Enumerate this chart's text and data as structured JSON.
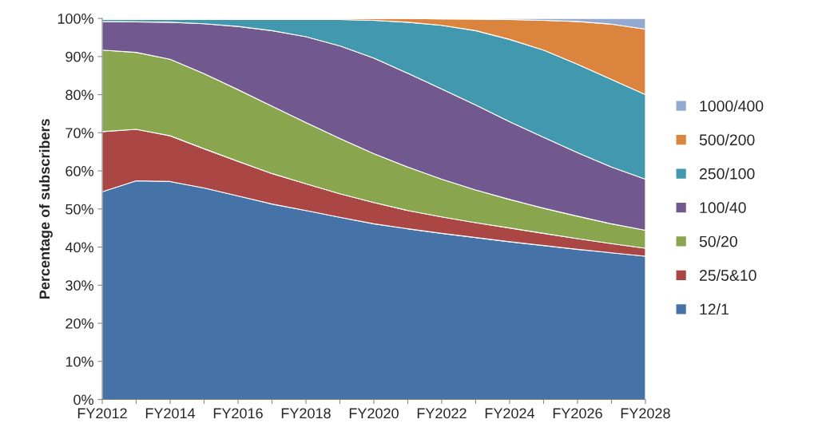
{
  "chart_data": {
    "type": "area",
    "stacked": true,
    "ylabel": "Percentage of subscribers",
    "categories": [
      "FY2012",
      null,
      "FY2014",
      null,
      "FY2016",
      null,
      "FY2018",
      null,
      "FY2020",
      null,
      "FY2022",
      null,
      "FY2024",
      null,
      "FY2026",
      null,
      "FY2028"
    ],
    "series": [
      {
        "name": "12/1",
        "color": "#4573a7",
        "values": [
          54.5,
          57.4,
          57.2,
          55.5,
          53.4,
          51.3,
          49.6,
          47.8,
          46.1,
          44.8,
          43.6,
          42.5,
          41.4,
          40.4,
          39.4,
          38.5,
          37.6
        ]
      },
      {
        "name": "25/5&10",
        "color": "#aa4644",
        "values": [
          15.8,
          13.5,
          12.0,
          10.3,
          9.1,
          8.0,
          7.0,
          6.2,
          5.6,
          4.8,
          4.3,
          3.9,
          3.6,
          3.2,
          2.8,
          2.4,
          2.1
        ]
      },
      {
        "name": "50/20",
        "color": "#89a54e",
        "values": [
          21.4,
          20.2,
          20.1,
          19.7,
          18.8,
          17.7,
          16.1,
          14.5,
          12.8,
          11.4,
          9.9,
          8.6,
          7.5,
          6.6,
          5.9,
          5.2,
          4.7
        ]
      },
      {
        "name": "100/40",
        "color": "#71588f",
        "values": [
          7.5,
          8.0,
          9.7,
          13.1,
          16.6,
          19.8,
          22.5,
          24.3,
          25.1,
          24.6,
          23.7,
          22.3,
          20.4,
          18.6,
          16.7,
          14.9,
          13.4
        ]
      },
      {
        "name": "250/100",
        "color": "#4198af",
        "values": [
          0.5,
          0.6,
          0.7,
          1.1,
          1.8,
          2.9,
          4.5,
          6.9,
          9.9,
          13.4,
          16.7,
          19.5,
          21.6,
          22.9,
          23.2,
          23.0,
          22.2
        ]
      },
      {
        "name": "500/200",
        "color": "#db843d",
        "values": [
          0.3,
          0.3,
          0.3,
          0.3,
          0.3,
          0.3,
          0.3,
          0.3,
          0.5,
          1.0,
          1.7,
          3.0,
          5.2,
          7.8,
          11.2,
          14.5,
          17.2
        ]
      },
      {
        "name": "1000/400",
        "color": "#93a9cf",
        "values": [
          0,
          0,
          0,
          0,
          0,
          0,
          0,
          0,
          0,
          0,
          0.1,
          0.2,
          0.3,
          0.5,
          0.8,
          1.5,
          2.8
        ]
      }
    ],
    "ylim": [
      0,
      100
    ],
    "yticks": [
      {
        "value": 0,
        "label": "0%"
      },
      {
        "value": 10,
        "label": "10%"
      },
      {
        "value": 20,
        "label": "20%"
      },
      {
        "value": 30,
        "label": "30%"
      },
      {
        "value": 40,
        "label": "40%"
      },
      {
        "value": 50,
        "label": "50%"
      },
      {
        "value": 60,
        "label": "60%"
      },
      {
        "value": 70,
        "label": "70%"
      },
      {
        "value": 80,
        "label": "80%"
      },
      {
        "value": 90,
        "label": "90%"
      },
      {
        "value": 100,
        "label": "100%"
      }
    ],
    "legend": "right"
  }
}
